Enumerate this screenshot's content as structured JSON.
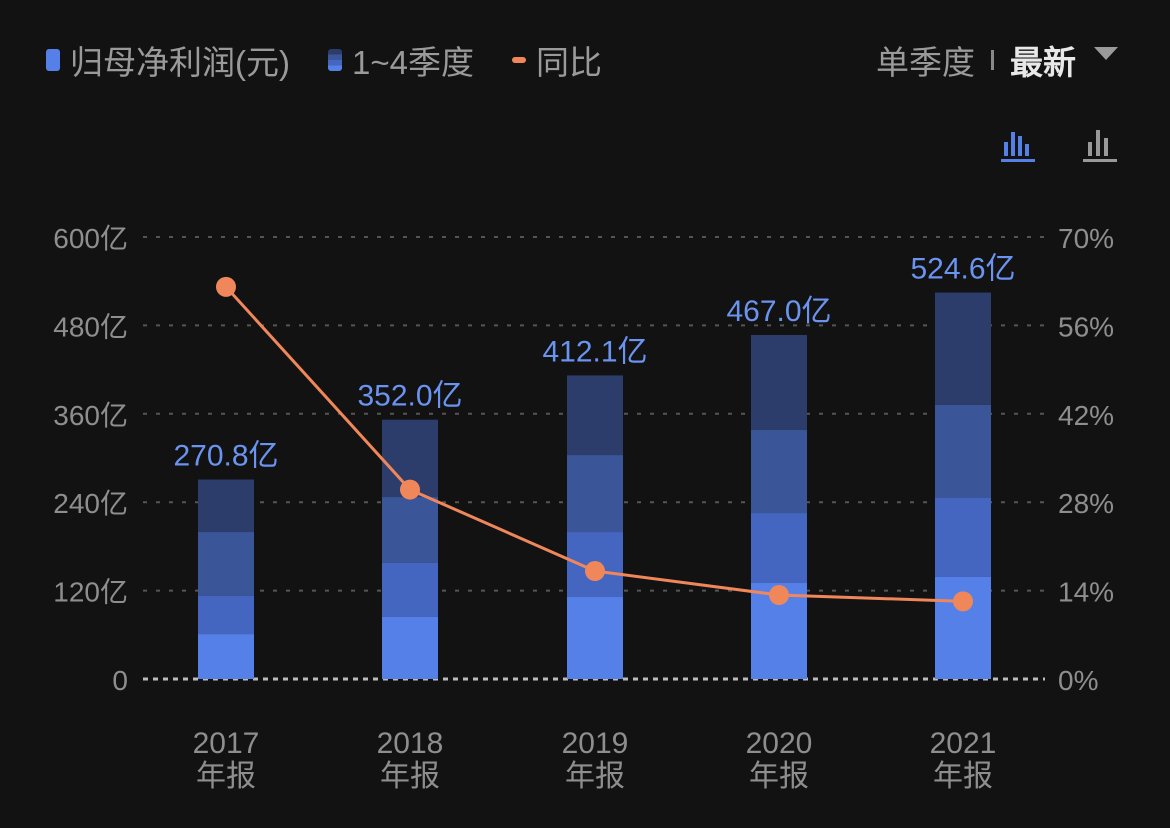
{
  "legend": {
    "net_profit": "归母净利润(元)",
    "quarters": "1~4季度",
    "yoy": "同比"
  },
  "mode": {
    "single_quarter": "单季度",
    "latest": "最新"
  },
  "icons": [
    "stacked-bar-chart-icon",
    "bar-chart-icon"
  ],
  "colors": {
    "q1": "#5580e8",
    "q2": "#4466c0",
    "q3": "#3a5699",
    "q4": "#2c3d6b",
    "line": "#f0875a",
    "label": "#6b93f0"
  },
  "chart_data": {
    "type": "bar",
    "categories": [
      "2017\n年报",
      "2018\n年报",
      "2019\n年报",
      "2020\n年报",
      "2021\n年报"
    ],
    "category_years": [
      "2017",
      "2018",
      "2019",
      "2020",
      "2021"
    ],
    "category_suffix": "年报",
    "stacked_series": [
      {
        "name": "Q1",
        "values": [
          61.0,
          84.2,
          111.3,
          130.3,
          138.5
        ]
      },
      {
        "name": "Q2",
        "values": [
          51.7,
          73.3,
          88.2,
          95.0,
          107.2
        ]
      },
      {
        "name": "Q3",
        "values": [
          86.8,
          89.5,
          104.5,
          112.7,
          126.3
        ]
      },
      {
        "name": "Q4",
        "values": [
          71.3,
          105.0,
          108.1,
          129.0,
          152.6
        ]
      }
    ],
    "totals": [
      270.8,
      352.0,
      412.1,
      467.0,
      524.6
    ],
    "total_labels": [
      "270.8亿",
      "352.0亿",
      "412.1亿",
      "467.0亿",
      "524.6亿"
    ],
    "line_series": {
      "name": "同比",
      "values": [
        62.1,
        30.0,
        17.1,
        13.3,
        12.3
      ],
      "unit": "%"
    },
    "y_left": {
      "range": [
        0,
        600
      ],
      "ticks": [
        "0",
        "120亿",
        "240亿",
        "360亿",
        "480亿",
        "600亿"
      ]
    },
    "y_right": {
      "range": [
        0,
        70
      ],
      "ticks": [
        "0%",
        "14%",
        "28%",
        "42%",
        "56%",
        "70%"
      ]
    },
    "grid": true,
    "legend_position": "top-left"
  }
}
